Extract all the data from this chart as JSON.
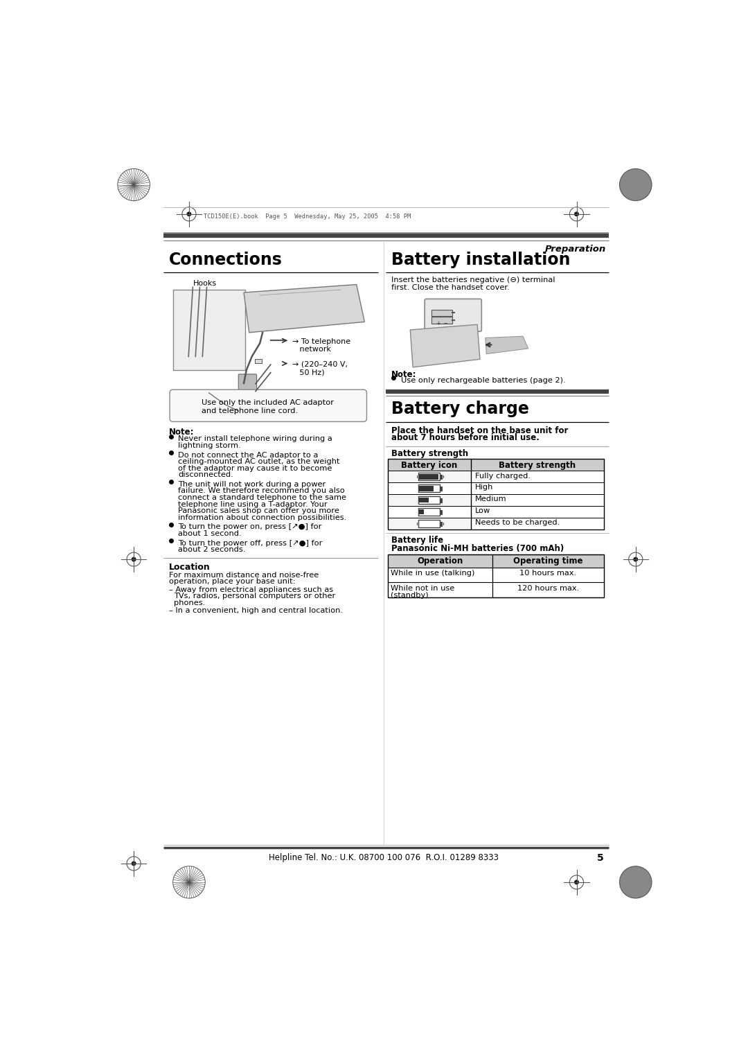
{
  "page_bg": "#ffffff",
  "page_width": 10.8,
  "page_height": 15.28,
  "dpi": 100,
  "header_text": "TCD150E(E).book  Page 5  Wednesday, May 25, 2005  4:58 PM",
  "section_right_italic": "Preparation",
  "col1_title": "Connections",
  "col2_title": "Battery installation",
  "col1_hooks_label": "Hooks",
  "col1_arrow1": "→ To telephone\n   network",
  "col1_arrow2": "→ (220–240 V,\n   50 Hz)",
  "col1_callout": "Use only the included AC adaptor\nand telephone line cord.",
  "col1_note_title": "Note:",
  "col1_notes": [
    "Never install telephone wiring during a\nlightning storm.",
    "Do not connect the AC adaptor to a\nceiling-mounted AC outlet, as the weight\nof the adaptor may cause it to become\ndisconnected.",
    "The unit will not work during a power\nfailure. We therefore recommend you also\nconnect a standard telephone to the same\ntelephone line using a T-adaptor. Your\nPanasonic sales shop can offer you more\ninformation about connection possibilities.",
    "To turn the power on, press [↗●] for\nabout 1 second.",
    "To turn the power off, press [↗●] for\nabout 2 seconds."
  ],
  "col1_location_title": "Location",
  "col1_location_text": "For maximum distance and noise-free\noperation, place your base unit:",
  "col1_location_bullets": [
    "Away from electrical appliances such as\nTVs, radios, personal computers or other\nphones.",
    "In a convenient, high and central location."
  ],
  "col2_install_text": "Insert the batteries negative (⊖) terminal\nfirst. Close the handset cover.",
  "col2_note_title": "Note:",
  "col2_note_text": "Use only rechargeable batteries (page 2).",
  "col2_charge_title": "Battery charge",
  "col2_charge_bold_line1": "Place the handset on the base unit for",
  "col2_charge_bold_line2": "about 7 hours before initial use.",
  "col2_battery_strength_title": "Battery strength",
  "col2_table1_headers": [
    "Battery icon",
    "Battery strength"
  ],
  "col2_table1_rows": [
    [
      "Fully charged."
    ],
    [
      "High"
    ],
    [
      "Medium"
    ],
    [
      "Low"
    ],
    [
      "Needs to be charged."
    ]
  ],
  "col2_battery_life_title": "Battery life",
  "col2_battery_life_subtitle": "Panasonic Ni-MH batteries (700 mAh)",
  "col2_table2_headers": [
    "Operation",
    "Operating time"
  ],
  "col2_table2_rows": [
    [
      "While in use (talking)",
      "10 hours max."
    ],
    [
      "While not in use\n(standby)",
      "120 hours max."
    ]
  ],
  "footer_text": "Helpline Tel. No.: U.K. 08700 100 076  R.O.I. 01289 8333",
  "footer_page": "5"
}
